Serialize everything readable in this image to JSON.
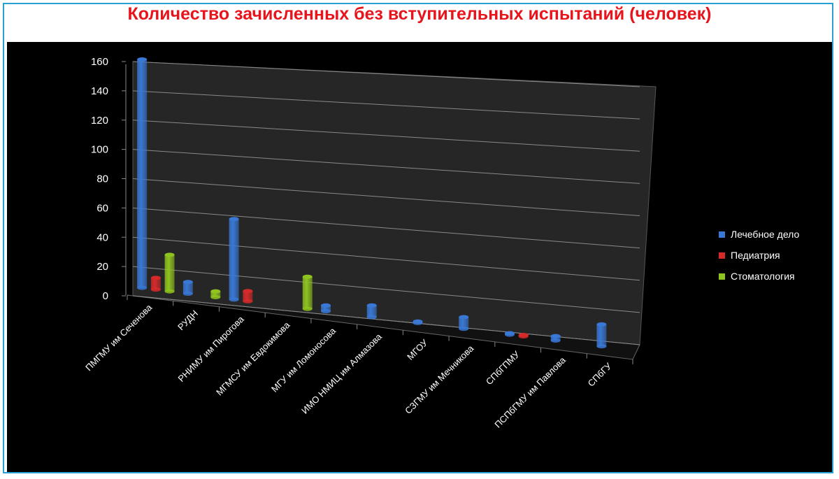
{
  "chart_data": {
    "type": "bar",
    "title": "Количество зачисленных без вступительных испытаний (человек)",
    "categories": [
      "ПМГМУ им Сеченова",
      "РУДН",
      "РНИМУ им Пирогова",
      "МГМСУ им Евдокимова",
      "МГУ им Ломоносова",
      "ИМО НМИЦ им Алмазова",
      "МГОУ",
      "СЗГМУ им Мечникова",
      "СПбГПМУ",
      "ПСПбГМУ им Павлова",
      "СПбГУ"
    ],
    "series": [
      {
        "name": "Лечебное дело",
        "color": "#3a78d6",
        "values": [
          156,
          8,
          55,
          null,
          4,
          8,
          1,
          8,
          1,
          3,
          15
        ]
      },
      {
        "name": "Педиатрия",
        "color": "#d62a2a",
        "values": [
          8,
          null,
          7,
          null,
          null,
          null,
          null,
          null,
          1,
          null,
          null
        ]
      },
      {
        "name": "Стоматология",
        "color": "#8fc31f",
        "values": [
          25,
          4,
          null,
          22,
          null,
          null,
          null,
          null,
          null,
          null,
          null
        ]
      }
    ],
    "yticks": [
      "0",
      "20",
      "40",
      "60",
      "80",
      "100",
      "120",
      "140",
      "160"
    ],
    "ylim": [
      0,
      160
    ],
    "legend_position": "right",
    "grid": true,
    "background": "#000000"
  }
}
